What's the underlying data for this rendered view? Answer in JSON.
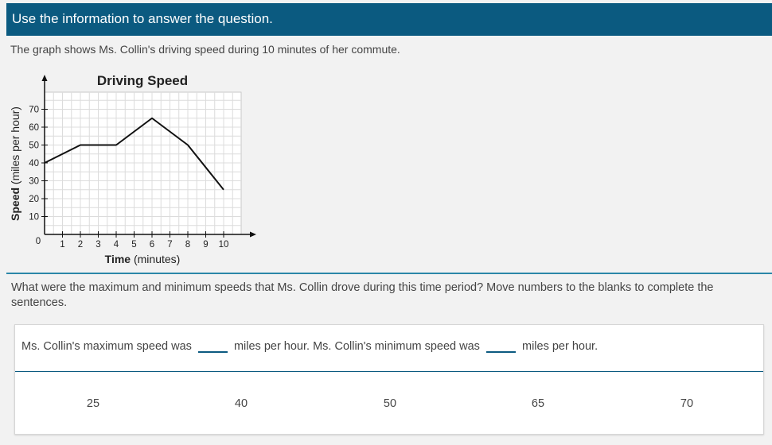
{
  "header": {
    "title": "Use the information to answer the question."
  },
  "stimulus": {
    "text": "The graph shows Ms. Collin's driving speed during 10 minutes of her commute."
  },
  "chart_data": {
    "type": "line",
    "title": "Driving Speed",
    "xlabel_bold": "Time",
    "xlabel_unit": "(minutes)",
    "ylabel_bold": "Speed",
    "ylabel_unit": "(miles per hour)",
    "x_ticks": [
      1,
      2,
      3,
      4,
      5,
      6,
      7,
      8,
      9,
      10
    ],
    "y_ticks": [
      10,
      20,
      30,
      40,
      50,
      60,
      70
    ],
    "origin_label": "0",
    "xlim": [
      0,
      11
    ],
    "ylim": [
      0,
      80
    ],
    "grid": true,
    "series": [
      {
        "x": [
          0,
          2,
          4,
          6,
          8,
          10
        ],
        "y": [
          40,
          50,
          50,
          65,
          50,
          25
        ]
      }
    ]
  },
  "question": {
    "text": "What were the maximum and minimum speeds that Ms. Collin drove during this time period? Move numbers to the blanks to complete the sentences."
  },
  "sentence": {
    "part1": "Ms. Collin's maximum speed was",
    "part2": "miles per hour. Ms. Collin's minimum speed was",
    "part3": "miles per hour."
  },
  "options": [
    "25",
    "40",
    "50",
    "65",
    "70"
  ]
}
